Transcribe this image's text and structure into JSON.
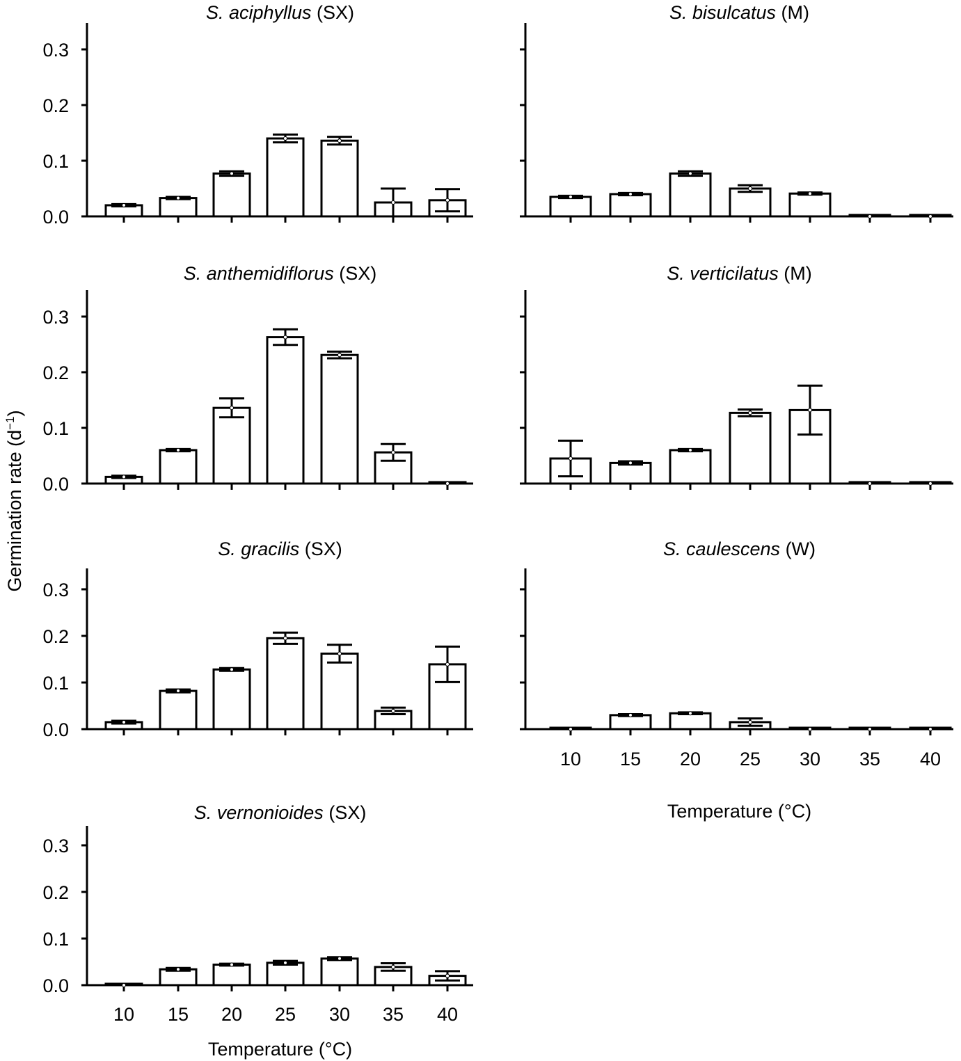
{
  "chart_data": {
    "type": "bar",
    "ylabel": "Germination rate (d",
    "ylabel_sup": "−1",
    "ylabel_close": ")",
    "xlabel": "Temperature (°C)",
    "categories": [
      "10",
      "15",
      "20",
      "25",
      "30",
      "35",
      "40"
    ],
    "yticks": [
      "0.0",
      "0.1",
      "0.2",
      "0.3"
    ],
    "ylim": [
      0,
      0.345
    ],
    "grid": false,
    "colors": {
      "bar_fill": "#ffffff",
      "bar_edge": "#000000"
    },
    "panels": [
      {
        "species": "S. aciphyllus",
        "group": "(SX)",
        "values": [
          0.02,
          0.033,
          0.077,
          0.14,
          0.136,
          0.025,
          0.029
        ],
        "errors": [
          0.002,
          0.002,
          0.004,
          0.007,
          0.007,
          0.025,
          0.02
        ]
      },
      {
        "species": "S. bisulcatus",
        "group": "(M)",
        "values": [
          0.035,
          0.04,
          0.077,
          0.05,
          0.041,
          0.0,
          0.0
        ],
        "errors": [
          0.002,
          0.002,
          0.004,
          0.006,
          0.002,
          0.0,
          0.0
        ]
      },
      {
        "species": "S. anthemidiflorus",
        "group": "(SX)",
        "values": [
          0.012,
          0.06,
          0.136,
          0.263,
          0.231,
          0.056,
          0.0
        ],
        "errors": [
          0.002,
          0.002,
          0.017,
          0.014,
          0.006,
          0.015,
          0.0
        ]
      },
      {
        "species": "S. verticilatus",
        "group": "(M)",
        "values": [
          0.045,
          0.037,
          0.06,
          0.127,
          0.132,
          0.0,
          0.0
        ],
        "errors": [
          0.032,
          0.003,
          0.002,
          0.006,
          0.044,
          0.0,
          0.0
        ]
      },
      {
        "species": "S. gracilis",
        "group": "(SX)",
        "values": [
          0.015,
          0.082,
          0.128,
          0.195,
          0.162,
          0.039,
          0.139
        ],
        "errors": [
          0.003,
          0.003,
          0.003,
          0.012,
          0.019,
          0.007,
          0.038
        ]
      },
      {
        "species": "S. caulescens",
        "group": "(W)",
        "values": [
          0.0,
          0.03,
          0.034,
          0.015,
          0.0,
          0.0,
          0.0
        ],
        "errors": [
          0.0,
          0.002,
          0.002,
          0.008,
          0.0,
          0.0,
          0.0
        ]
      },
      {
        "species": "S. vernonioides",
        "group": "(SX)",
        "values": [
          0.0,
          0.034,
          0.044,
          0.048,
          0.057,
          0.039,
          0.02
        ],
        "errors": [
          0.0,
          0.003,
          0.002,
          0.004,
          0.003,
          0.008,
          0.01
        ]
      }
    ]
  }
}
